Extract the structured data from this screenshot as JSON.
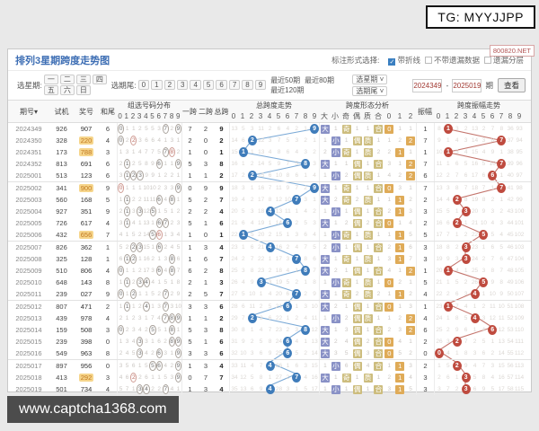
{
  "watermarks": {
    "top": "TG: MYYJJPP",
    "bottom": "www.captcha1368.com",
    "badge": "800820.NET"
  },
  "header": {
    "title": "排列3星期跨度走势图",
    "mark_label": "标注形式选择:",
    "mark_options": [
      {
        "label": "带折线",
        "checked": true
      },
      {
        "label": "不带遗漏数据",
        "checked": false
      },
      {
        "label": "遗漏分层",
        "checked": false
      }
    ],
    "week_label": "选星期:",
    "weeks": [
      "一",
      "二",
      "三",
      "四",
      "五",
      "六",
      "日"
    ],
    "tail_label": "选期尾:",
    "tails": [
      "0",
      "1",
      "2",
      "3",
      "4",
      "5",
      "6",
      "7",
      "8",
      "9"
    ],
    "recent": [
      "最近50期",
      "最近80期",
      "最近120期"
    ],
    "selects": [
      "选星期",
      "选期尾"
    ],
    "range": {
      "from": "2024349",
      "sep": "-",
      "to": "2025019",
      "unit": "期"
    },
    "view_button": "查看"
  },
  "table": {
    "columns": {
      "period": "期号",
      "sort_arrow": "▾",
      "test": "试机",
      "prize": "奖号",
      "sum_tail": "和尾",
      "dist_group": "组选号码分布",
      "k1": "一跨",
      "k2": "二跨",
      "k3": "总跨",
      "span_group": "总跨度走势",
      "form_group": "跨度形态分析",
      "amp": "振幅",
      "amp_group": "跨度振幅走势"
    },
    "digit_cols": [
      "0",
      "1",
      "2",
      "3",
      "4",
      "5",
      "6",
      "7",
      "8",
      "9"
    ],
    "form_cols": [
      "大",
      "小",
      "奇",
      "偶",
      "质",
      "合",
      "0",
      "1",
      "2"
    ],
    "row_format": [
      "period",
      "test",
      "prize",
      "prize_highlight",
      "sum_tail",
      "dist(o#=circle,r#=repeat-circle,number=miss)",
      "k1",
      "k2",
      "k3",
      "span",
      "span_miss(null=circle)",
      "forms(string=highlight,number=miss)",
      "amp",
      "amp_miss(null=circle)"
    ],
    "rows": [
      [
        "2024349",
        "926",
        "907",
        0,
        "6",
        [
          "o0",
          1,
          1,
          2,
          5,
          5,
          3,
          "o7",
          2,
          "o9"
        ],
        "7",
        "2",
        "9",
        9,
        [
          13,
          5,
          3,
          11,
          2,
          6,
          4,
          2,
          1,
          null
        ],
        [
          "大",
          1,
          "奇",
          1,
          1,
          "合",
          "0",
          1,
          1
        ],
        1,
        [
          8,
          null,
          3,
          2,
          13,
          2,
          7,
          8,
          36,
          93
        ]
      ],
      [
        "2024350",
        "328",
        "220",
        1,
        "4",
        [
          "o0",
          2,
          "r2",
          3,
          6,
          6,
          4,
          1,
          3,
          1
        ],
        "2",
        "0",
        "2",
        2,
        [
          14,
          6,
          null,
          12,
          3,
          7,
          5,
          3,
          2,
          1
        ],
        [
          1,
          "小",
          1,
          "偶",
          "质",
          1,
          1,
          2,
          "2"
        ],
        7,
        [
          9,
          1,
          4,
          3,
          14,
          3,
          8,
          null,
          37,
          94
        ]
      ],
      [
        "2024351",
        "173",
        "788",
        1,
        "3",
        [
          1,
          3,
          1,
          4,
          7,
          7,
          5,
          "o7",
          "r8",
          2
        ],
        "1",
        "0",
        "1",
        1,
        [
          15,
          null,
          1,
          13,
          4,
          8,
          6,
          4,
          3,
          2
        ],
        [
          2,
          "小",
          "奇",
          1,
          "质",
          2,
          2,
          "1",
          1
        ],
        1,
        [
          10,
          null,
          5,
          4,
          15,
          4,
          9,
          1,
          38,
          95
        ]
      ],
      [
        "2024352",
        "813",
        "691",
        0,
        "6",
        [
          2,
          "o1",
          2,
          5,
          8,
          9,
          "o6",
          1,
          1,
          "o9"
        ],
        "5",
        "3",
        "8",
        8,
        [
          16,
          1,
          2,
          14,
          5,
          9,
          7,
          5,
          null,
          3
        ],
        [
          "大",
          1,
          1,
          "偶",
          1,
          "合",
          3,
          1,
          "2"
        ],
        7,
        [
          11,
          1,
          6,
          5,
          16,
          5,
          10,
          null,
          39,
          96
        ]
      ],
      [
        "2025001",
        "513",
        "123",
        0,
        "6",
        [
          3,
          "o1",
          "o2",
          "o3",
          9,
          9,
          1,
          2,
          2,
          1
        ],
        "1",
        "1",
        "2",
        2,
        [
          17,
          2,
          null,
          15,
          6,
          10,
          8,
          6,
          1,
          4
        ],
        [
          1,
          "小",
          2,
          "偶",
          "质",
          1,
          4,
          2,
          "2"
        ],
        6,
        [
          12,
          2,
          7,
          6,
          17,
          6,
          null,
          1,
          40,
          97
        ]
      ],
      [
        "2025002",
        "341",
        "900",
        1,
        "9",
        [
          "r0",
          1,
          1,
          1,
          10,
          10,
          2,
          3,
          3,
          "o9"
        ],
        "0",
        "9",
        "9",
        9,
        [
          18,
          3,
          1,
          16,
          7,
          11,
          9,
          7,
          2,
          null
        ],
        [
          "大",
          1,
          "奇",
          1,
          1,
          "合",
          "0",
          3,
          1
        ],
        7,
        [
          13,
          3,
          8,
          7,
          18,
          7,
          1,
          null,
          41,
          98
        ]
      ],
      [
        "2025003",
        "560",
        "168",
        0,
        "5",
        [
          1,
          "o1",
          2,
          2,
          11,
          11,
          "o6",
          4,
          "o8",
          1
        ],
        "5",
        "2",
        "7",
        7,
        [
          19,
          4,
          2,
          17,
          8,
          12,
          10,
          null,
          3,
          1
        ],
        [
          "大",
          2,
          "奇",
          2,
          "质",
          1,
          1,
          "1",
          2
        ],
        2,
        [
          14,
          4,
          null,
          8,
          19,
          8,
          2,
          1,
          42,
          99
        ]
      ],
      [
        "2025004",
        "927",
        "351",
        0,
        "9",
        [
          2,
          "o1",
          3,
          "o3",
          12,
          "o5",
          1,
          5,
          1,
          2
        ],
        "2",
        "2",
        "4",
        4,
        [
          20,
          5,
          3,
          18,
          null,
          13,
          11,
          1,
          4,
          2
        ],
        [
          1,
          "小",
          1,
          "偶",
          1,
          "合",
          2,
          "1",
          3
        ],
        3,
        [
          15,
          5,
          1,
          null,
          20,
          9,
          3,
          2,
          43,
          100
        ]
      ],
      [
        "2025005",
        "726",
        "617",
        0,
        "4",
        [
          3,
          "o1",
          4,
          1,
          13,
          1,
          "o6",
          "o7",
          2,
          3
        ],
        "5",
        "1",
        "6",
        6,
        [
          21,
          6,
          4,
          19,
          1,
          14,
          null,
          2,
          5,
          3
        ],
        [
          "大",
          1,
          2,
          "偶",
          2,
          "合",
          "0",
          1,
          4
        ],
        2,
        [
          16,
          6,
          null,
          1,
          21,
          10,
          4,
          3,
          44,
          101
        ]
      ],
      [
        "2025006",
        "432",
        "656",
        1,
        "7",
        [
          4,
          1,
          5,
          2,
          14,
          "o5",
          "r6",
          1,
          3,
          4
        ],
        "1",
        "0",
        "1",
        1,
        [
          22,
          null,
          5,
          20,
          2,
          15,
          1,
          3,
          6,
          4
        ],
        [
          1,
          "小",
          "奇",
          1,
          "质",
          1,
          1,
          "1",
          5
        ],
        5,
        [
          17,
          7,
          1,
          2,
          22,
          null,
          5,
          4,
          45,
          102
        ]
      ],
      [
        "2025007",
        "826",
        "362",
        0,
        "1",
        [
          5,
          2,
          "o2",
          "o3",
          15,
          1,
          "o6",
          2,
          4,
          5
        ],
        "1",
        "3",
        "4",
        4,
        [
          23,
          1,
          6,
          21,
          null,
          16,
          2,
          4,
          7,
          5
        ],
        [
          2,
          "小",
          1,
          "偶",
          1,
          "合",
          2,
          "1",
          6
        ],
        3,
        [
          18,
          8,
          2,
          null,
          23,
          1,
          6,
          5,
          46,
          103
        ]
      ],
      [
        "2025008",
        "325",
        "128",
        0,
        "1",
        [
          6,
          "o1",
          "o2",
          1,
          16,
          2,
          1,
          3,
          "o8",
          6
        ],
        "1",
        "6",
        "7",
        7,
        [
          24,
          2,
          7,
          22,
          1,
          17,
          3,
          null,
          8,
          6
        ],
        [
          "大",
          1,
          "奇",
          1,
          "质",
          1,
          3,
          "1",
          7
        ],
        3,
        [
          19,
          9,
          3,
          null,
          24,
          2,
          7,
          6,
          47,
          104
        ]
      ],
      [
        "2025009",
        "510",
        "806",
        0,
        "4",
        [
          "o0",
          1,
          1,
          2,
          17,
          3,
          "o6",
          4,
          "o8",
          7
        ],
        "6",
        "2",
        "8",
        8,
        [
          25,
          3,
          8,
          23,
          2,
          18,
          4,
          1,
          null,
          7
        ],
        [
          "大",
          2,
          1,
          "偶",
          1,
          "合",
          4,
          1,
          "2"
        ],
        1,
        [
          20,
          null,
          4,
          1,
          25,
          3,
          8,
          7,
          48,
          105
        ]
      ],
      [
        "2025010",
        "648",
        "143",
        0,
        "8",
        [
          1,
          "o1",
          2,
          "o3",
          "o4",
          4,
          1,
          5,
          1,
          8
        ],
        "2",
        "1",
        "3",
        3,
        [
          26,
          4,
          9,
          null,
          3,
          19,
          5,
          2,
          1,
          8
        ],
        [
          1,
          "小",
          "奇",
          1,
          "质",
          1,
          "0",
          2,
          1
        ],
        5,
        [
          21,
          1,
          5,
          2,
          26,
          null,
          9,
          8,
          49,
          106
        ]
      ],
      [
        "2025011",
        "239",
        "027",
        0,
        "9",
        [
          "o0",
          1,
          "o2",
          1,
          1,
          5,
          2,
          "o7",
          2,
          9
        ],
        "2",
        "5",
        "7",
        7,
        [
          27,
          5,
          10,
          1,
          4,
          20,
          6,
          null,
          2,
          9
        ],
        [
          "大",
          1,
          "奇",
          2,
          "质",
          2,
          1,
          "1",
          2
        ],
        4,
        [
          22,
          2,
          6,
          3,
          null,
          1,
          10,
          9,
          50,
          107
        ]
      ],
      [
        "2025012",
        "807",
        "471",
        0,
        "2",
        [
          1,
          "o1",
          1,
          2,
          "o4",
          1,
          3,
          "o7",
          3,
          10
        ],
        "3",
        "3",
        "6",
        6,
        [
          28,
          6,
          11,
          2,
          5,
          21,
          null,
          1,
          3,
          10
        ],
        [
          "大",
          2,
          1,
          "偶",
          1,
          "合",
          "0",
          1,
          3
        ],
        1,
        [
          23,
          null,
          7,
          4,
          1,
          2,
          11,
          10,
          51,
          108
        ]
      ],
      [
        "2025013",
        "439",
        "978",
        0,
        "4",
        [
          2,
          1,
          2,
          3,
          1,
          7,
          4,
          "o7",
          "o8",
          "o9"
        ],
        "1",
        "1",
        "2",
        2,
        [
          29,
          7,
          null,
          3,
          6,
          22,
          1,
          2,
          4,
          11
        ],
        [
          1,
          "小",
          2,
          "偶",
          "质",
          1,
          1,
          2,
          "2"
        ],
        4,
        [
          24,
          1,
          8,
          5,
          null,
          3,
          12,
          11,
          52,
          109
        ]
      ],
      [
        "2025014",
        "159",
        "508",
        0,
        "3",
        [
          "o0",
          2,
          3,
          4,
          2,
          "o5",
          5,
          1,
          "o8",
          1
        ],
        "5",
        "3",
        "8",
        8,
        [
          30,
          8,
          1,
          4,
          7,
          23,
          2,
          3,
          null,
          12
        ],
        [
          "大",
          1,
          3,
          "偶",
          1,
          "合",
          2,
          3,
          "2"
        ],
        6,
        [
          25,
          2,
          9,
          6,
          1,
          4,
          null,
          12,
          53,
          110
        ]
      ],
      [
        "2025015",
        "239",
        "398",
        0,
        "0",
        [
          1,
          3,
          4,
          "o3",
          3,
          1,
          6,
          2,
          "o8",
          "o9"
        ],
        "5",
        "1",
        "6",
        6,
        [
          31,
          9,
          2,
          5,
          8,
          24,
          null,
          4,
          1,
          13
        ],
        [
          "大",
          2,
          4,
          "偶",
          2,
          "合",
          "0",
          4,
          1
        ],
        2,
        [
          26,
          3,
          null,
          7,
          2,
          5,
          1,
          13,
          54,
          111
        ]
      ],
      [
        "2025016",
        "549",
        "963",
        0,
        "8",
        [
          2,
          4,
          5,
          "o3",
          4,
          2,
          "o6",
          3,
          1,
          "o9"
        ],
        "3",
        "3",
        "6",
        6,
        [
          32,
          10,
          3,
          6,
          9,
          25,
          null,
          5,
          2,
          14
        ],
        [
          "大",
          3,
          5,
          "偶",
          3,
          "合",
          "0",
          5,
          2
        ],
        0,
        [
          null,
          4,
          1,
          8,
          3,
          6,
          2,
          14,
          55,
          112
        ]
      ],
      [
        "2025017",
        "897",
        "956",
        0,
        "0",
        [
          3,
          5,
          6,
          1,
          5,
          "o5",
          "o6",
          4,
          2,
          "o9"
        ],
        "1",
        "3",
        "4",
        4,
        [
          33,
          11,
          4,
          7,
          null,
          26,
          1,
          6,
          3,
          15
        ],
        [
          1,
          "小",
          6,
          "偶",
          4,
          "合",
          1,
          "1",
          3
        ],
        2,
        [
          1,
          5,
          null,
          9,
          4,
          7,
          3,
          15,
          56,
          113
        ]
      ],
      [
        "2025018",
        "413",
        "292",
        1,
        "3",
        [
          4,
          6,
          "r2",
          2,
          6,
          1,
          1,
          5,
          3,
          "o9"
        ],
        "0",
        "7",
        "7",
        7,
        [
          34,
          12,
          5,
          8,
          1,
          27,
          2,
          null,
          4,
          16
        ],
        [
          "大",
          1,
          "奇",
          1,
          "质",
          1,
          2,
          "1",
          4
        ],
        3,
        [
          2,
          6,
          1,
          null,
          5,
          8,
          4,
          16,
          57,
          114
        ]
      ],
      [
        "2025019",
        "501",
        "734",
        0,
        "4",
        [
          5,
          7,
          1,
          "o3",
          "o4",
          2,
          2,
          "o7",
          4,
          1
        ],
        "1",
        "3",
        "4",
        4,
        [
          35,
          13,
          6,
          9,
          null,
          28,
          3,
          1,
          5,
          17
        ],
        [
          1,
          "小",
          1,
          "偶",
          1,
          "合",
          3,
          "1",
          5
        ],
        3,
        [
          3,
          7,
          2,
          null,
          6,
          9,
          5,
          17,
          58,
          115
        ]
      ]
    ]
  },
  "colors": {
    "span_circle": "#3f7cba",
    "amp_circle": "#bf4b3f",
    "line_blue": "#7aa9d6",
    "line_red": "#c4756d",
    "highlight_big_small": "#8991c6",
    "highlight_parity": "#cdbd7e",
    "highlight_route": "#dfab58"
  }
}
